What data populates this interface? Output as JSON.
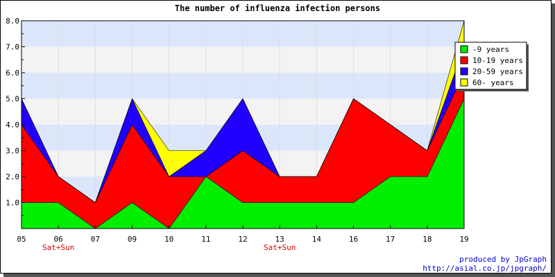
{
  "chart_data": {
    "type": "area",
    "stacked": true,
    "title": "The number of influenza infection persons",
    "categories": [
      "05",
      "06",
      "07",
      "09",
      "10",
      "11",
      "12",
      "13",
      "14",
      "16",
      "17",
      "18",
      "19"
    ],
    "category_sublabels": {
      "06": "Sat+Sun",
      "13": "Sat+Sun"
    },
    "ylim": [
      0,
      8
    ],
    "yticks": [
      "1.0",
      "2.0",
      "3.0",
      "4.0",
      "5.0",
      "6.0",
      "7.0",
      "8.0"
    ],
    "grid": true,
    "legend_position": "top-right",
    "series": [
      {
        "name": "-9 years",
        "color": "#00ee00",
        "values": [
          1,
          1,
          0,
          1,
          0,
          2,
          1,
          1,
          1,
          1,
          2,
          2,
          5
        ]
      },
      {
        "name": "10-19 years",
        "color": "#ff0000",
        "values": [
          3,
          1,
          1,
          3,
          2,
          0,
          2,
          1,
          1,
          4,
          2,
          1,
          1
        ]
      },
      {
        "name": "20-59 years",
        "color": "#2200ff",
        "values": [
          1,
          0,
          0,
          1,
          0,
          1,
          2,
          0,
          0,
          0,
          0,
          0,
          1
        ]
      },
      {
        "name": "60- years",
        "color": "#ffff00",
        "values": [
          0,
          0,
          0,
          0,
          1,
          0,
          0,
          0,
          0,
          0,
          0,
          0,
          1
        ]
      }
    ]
  },
  "footer": {
    "line1": "produced by JpGraph",
    "line2": "http://asial.co.jp/jpgraph/"
  },
  "colors": {
    "band_light": "#f3f3f3",
    "band_blue": "#dce6fb",
    "sublabel": "#dd0000",
    "footer_text": "#0000cc"
  }
}
